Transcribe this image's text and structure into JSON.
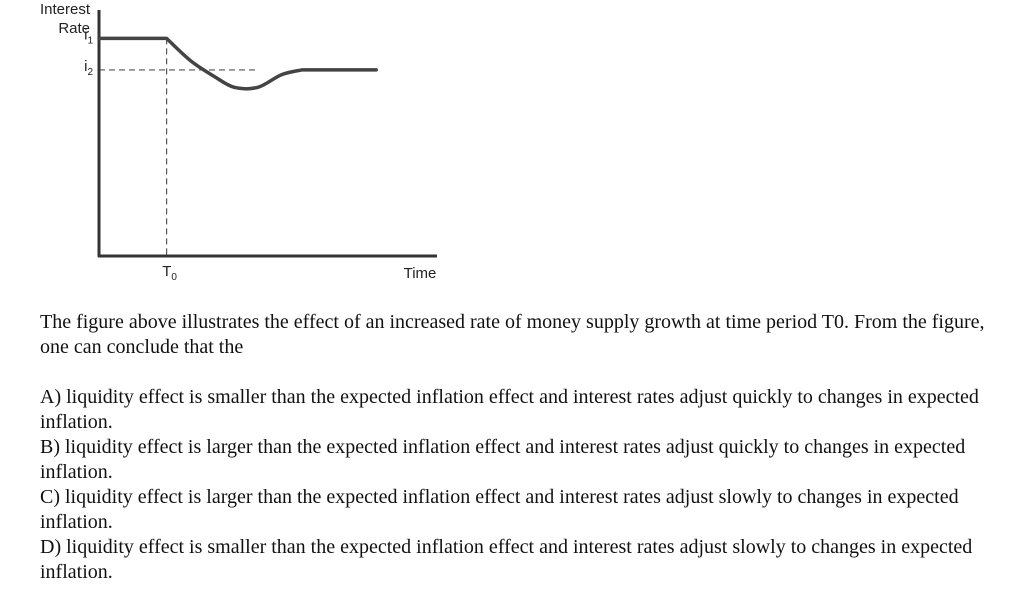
{
  "chart_data": {
    "type": "line",
    "title": "",
    "ylabel_line1": "Interest",
    "ylabel_line2": "Rate",
    "xlabel": "Time",
    "y_levels": [
      {
        "name": "i1",
        "base": "i",
        "sub": "1",
        "value": 1.0
      },
      {
        "name": "i2",
        "base": "i",
        "sub": "2",
        "value": 0.0
      }
    ],
    "x_marker": {
      "base": "T",
      "sub": "0",
      "value": 0
    },
    "xlim": [
      -1,
      4
    ],
    "ylim": [
      -5.9,
      1.9
    ],
    "series": [
      {
        "x": [
          -1.0,
          0.0,
          0.35,
          0.7,
          1.0,
          1.35,
          1.7,
          2.0,
          3.1
        ],
        "y": [
          1.0,
          1.0,
          0.3,
          -0.2,
          -0.55,
          -0.55,
          -0.15,
          0.0,
          0.0
        ]
      }
    ],
    "reference_lines": [
      "i2 horizontal dashed",
      "T0 vertical dashed"
    ]
  },
  "question": {
    "stem": "The figure above illustrates the effect of an increased rate of money supply growth at time period T0. From the figure, one can conclude that the",
    "options": [
      "A) liquidity effect is smaller than the expected inflation effect and interest rates adjust quickly to changes in expected inflation.",
      "B) liquidity effect is larger than the expected inflation effect and interest rates adjust quickly to changes in expected inflation.",
      "C) liquidity effect is larger than the expected inflation effect and interest rates adjust slowly to changes in expected inflation.",
      "D) liquidity effect is smaller than the expected inflation effect and interest rates adjust slowly to changes in expected inflation."
    ]
  }
}
